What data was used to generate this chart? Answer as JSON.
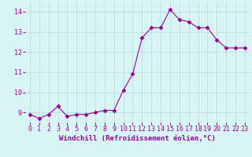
{
  "x": [
    0,
    1,
    2,
    3,
    4,
    5,
    6,
    7,
    8,
    9,
    10,
    11,
    12,
    13,
    14,
    15,
    16,
    17,
    18,
    19,
    20,
    21,
    22,
    23
  ],
  "y": [
    8.9,
    8.7,
    8.9,
    9.3,
    8.8,
    8.9,
    8.9,
    9.0,
    9.1,
    9.1,
    10.1,
    10.9,
    12.7,
    13.2,
    13.2,
    14.1,
    13.6,
    13.5,
    13.2,
    13.2,
    12.6,
    12.2,
    12.2,
    12.2
  ],
  "line_color": "#990099",
  "marker": "D",
  "bg_color": "#d8f5f5",
  "grid_color": "#b8d8d8",
  "xlabel": "Windchill (Refroidissement éolien,°C)",
  "xlabel_color": "#990099",
  "tick_color": "#990099",
  "ylim": [
    8.5,
    14.5
  ],
  "xlim": [
    -0.5,
    23.5
  ],
  "yticks": [
    9,
    10,
    11,
    12,
    13,
    14
  ],
  "xticks": [
    0,
    1,
    2,
    3,
    4,
    5,
    6,
    7,
    8,
    9,
    10,
    11,
    12,
    13,
    14,
    15,
    16,
    17,
    18,
    19,
    20,
    21,
    22,
    23
  ],
  "label_fontsize": 6.5,
  "tick_fontsize": 6,
  "markersize": 2.5,
  "linewidth": 0.8
}
